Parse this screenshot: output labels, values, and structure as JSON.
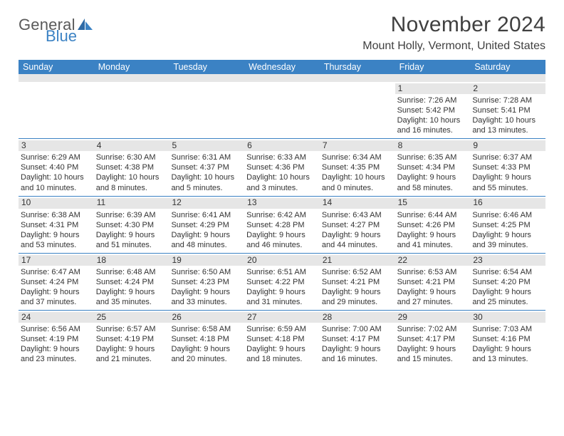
{
  "logo": {
    "text1": "General",
    "text2": "Blue"
  },
  "title": "November 2024",
  "location": "Mount Holly, Vermont, United States",
  "calendar": {
    "type": "table",
    "header_bg": "#3b82c4",
    "header_fg": "#ffffff",
    "stripe_bg": "#e6e6e6",
    "divider_color": "#3b82c4",
    "text_color": "#333333",
    "font_size_body": 11,
    "font_size_header": 12.5,
    "day_names": [
      "Sunday",
      "Monday",
      "Tuesday",
      "Wednesday",
      "Thursday",
      "Friday",
      "Saturday"
    ],
    "weeks": [
      [
        {
          "blank": true
        },
        {
          "blank": true
        },
        {
          "blank": true
        },
        {
          "blank": true
        },
        {
          "blank": true
        },
        {
          "day": "1",
          "sunrise": "Sunrise: 7:26 AM",
          "sunset": "Sunset: 5:42 PM",
          "daylight1": "Daylight: 10 hours",
          "daylight2": "and 16 minutes."
        },
        {
          "day": "2",
          "sunrise": "Sunrise: 7:28 AM",
          "sunset": "Sunset: 5:41 PM",
          "daylight1": "Daylight: 10 hours",
          "daylight2": "and 13 minutes."
        }
      ],
      [
        {
          "day": "3",
          "sunrise": "Sunrise: 6:29 AM",
          "sunset": "Sunset: 4:40 PM",
          "daylight1": "Daylight: 10 hours",
          "daylight2": "and 10 minutes."
        },
        {
          "day": "4",
          "sunrise": "Sunrise: 6:30 AM",
          "sunset": "Sunset: 4:38 PM",
          "daylight1": "Daylight: 10 hours",
          "daylight2": "and 8 minutes."
        },
        {
          "day": "5",
          "sunrise": "Sunrise: 6:31 AM",
          "sunset": "Sunset: 4:37 PM",
          "daylight1": "Daylight: 10 hours",
          "daylight2": "and 5 minutes."
        },
        {
          "day": "6",
          "sunrise": "Sunrise: 6:33 AM",
          "sunset": "Sunset: 4:36 PM",
          "daylight1": "Daylight: 10 hours",
          "daylight2": "and 3 minutes."
        },
        {
          "day": "7",
          "sunrise": "Sunrise: 6:34 AM",
          "sunset": "Sunset: 4:35 PM",
          "daylight1": "Daylight: 10 hours",
          "daylight2": "and 0 minutes."
        },
        {
          "day": "8",
          "sunrise": "Sunrise: 6:35 AM",
          "sunset": "Sunset: 4:34 PM",
          "daylight1": "Daylight: 9 hours",
          "daylight2": "and 58 minutes."
        },
        {
          "day": "9",
          "sunrise": "Sunrise: 6:37 AM",
          "sunset": "Sunset: 4:33 PM",
          "daylight1": "Daylight: 9 hours",
          "daylight2": "and 55 minutes."
        }
      ],
      [
        {
          "day": "10",
          "sunrise": "Sunrise: 6:38 AM",
          "sunset": "Sunset: 4:31 PM",
          "daylight1": "Daylight: 9 hours",
          "daylight2": "and 53 minutes."
        },
        {
          "day": "11",
          "sunrise": "Sunrise: 6:39 AM",
          "sunset": "Sunset: 4:30 PM",
          "daylight1": "Daylight: 9 hours",
          "daylight2": "and 51 minutes."
        },
        {
          "day": "12",
          "sunrise": "Sunrise: 6:41 AM",
          "sunset": "Sunset: 4:29 PM",
          "daylight1": "Daylight: 9 hours",
          "daylight2": "and 48 minutes."
        },
        {
          "day": "13",
          "sunrise": "Sunrise: 6:42 AM",
          "sunset": "Sunset: 4:28 PM",
          "daylight1": "Daylight: 9 hours",
          "daylight2": "and 46 minutes."
        },
        {
          "day": "14",
          "sunrise": "Sunrise: 6:43 AM",
          "sunset": "Sunset: 4:27 PM",
          "daylight1": "Daylight: 9 hours",
          "daylight2": "and 44 minutes."
        },
        {
          "day": "15",
          "sunrise": "Sunrise: 6:44 AM",
          "sunset": "Sunset: 4:26 PM",
          "daylight1": "Daylight: 9 hours",
          "daylight2": "and 41 minutes."
        },
        {
          "day": "16",
          "sunrise": "Sunrise: 6:46 AM",
          "sunset": "Sunset: 4:25 PM",
          "daylight1": "Daylight: 9 hours",
          "daylight2": "and 39 minutes."
        }
      ],
      [
        {
          "day": "17",
          "sunrise": "Sunrise: 6:47 AM",
          "sunset": "Sunset: 4:24 PM",
          "daylight1": "Daylight: 9 hours",
          "daylight2": "and 37 minutes."
        },
        {
          "day": "18",
          "sunrise": "Sunrise: 6:48 AM",
          "sunset": "Sunset: 4:24 PM",
          "daylight1": "Daylight: 9 hours",
          "daylight2": "and 35 minutes."
        },
        {
          "day": "19",
          "sunrise": "Sunrise: 6:50 AM",
          "sunset": "Sunset: 4:23 PM",
          "daylight1": "Daylight: 9 hours",
          "daylight2": "and 33 minutes."
        },
        {
          "day": "20",
          "sunrise": "Sunrise: 6:51 AM",
          "sunset": "Sunset: 4:22 PM",
          "daylight1": "Daylight: 9 hours",
          "daylight2": "and 31 minutes."
        },
        {
          "day": "21",
          "sunrise": "Sunrise: 6:52 AM",
          "sunset": "Sunset: 4:21 PM",
          "daylight1": "Daylight: 9 hours",
          "daylight2": "and 29 minutes."
        },
        {
          "day": "22",
          "sunrise": "Sunrise: 6:53 AM",
          "sunset": "Sunset: 4:21 PM",
          "daylight1": "Daylight: 9 hours",
          "daylight2": "and 27 minutes."
        },
        {
          "day": "23",
          "sunrise": "Sunrise: 6:54 AM",
          "sunset": "Sunset: 4:20 PM",
          "daylight1": "Daylight: 9 hours",
          "daylight2": "and 25 minutes."
        }
      ],
      [
        {
          "day": "24",
          "sunrise": "Sunrise: 6:56 AM",
          "sunset": "Sunset: 4:19 PM",
          "daylight1": "Daylight: 9 hours",
          "daylight2": "and 23 minutes."
        },
        {
          "day": "25",
          "sunrise": "Sunrise: 6:57 AM",
          "sunset": "Sunset: 4:19 PM",
          "daylight1": "Daylight: 9 hours",
          "daylight2": "and 21 minutes."
        },
        {
          "day": "26",
          "sunrise": "Sunrise: 6:58 AM",
          "sunset": "Sunset: 4:18 PM",
          "daylight1": "Daylight: 9 hours",
          "daylight2": "and 20 minutes."
        },
        {
          "day": "27",
          "sunrise": "Sunrise: 6:59 AM",
          "sunset": "Sunset: 4:18 PM",
          "daylight1": "Daylight: 9 hours",
          "daylight2": "and 18 minutes."
        },
        {
          "day": "28",
          "sunrise": "Sunrise: 7:00 AM",
          "sunset": "Sunset: 4:17 PM",
          "daylight1": "Daylight: 9 hours",
          "daylight2": "and 16 minutes."
        },
        {
          "day": "29",
          "sunrise": "Sunrise: 7:02 AM",
          "sunset": "Sunset: 4:17 PM",
          "daylight1": "Daylight: 9 hours",
          "daylight2": "and 15 minutes."
        },
        {
          "day": "30",
          "sunrise": "Sunrise: 7:03 AM",
          "sunset": "Sunset: 4:16 PM",
          "daylight1": "Daylight: 9 hours",
          "daylight2": "and 13 minutes."
        }
      ]
    ]
  }
}
